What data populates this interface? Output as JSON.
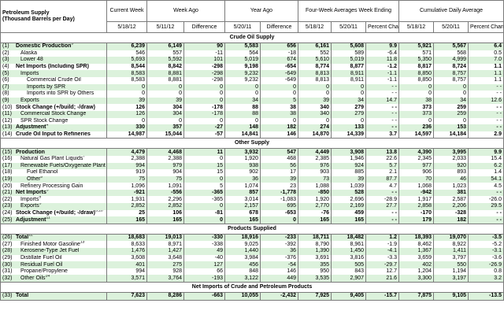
{
  "header": {
    "title_lines": [
      "Petroleum Supply",
      "(Thousand Barrels per Day)"
    ],
    "groups": [
      {
        "label": "Current Week",
        "subs": [
          "5/18/12"
        ]
      },
      {
        "label": "Week Ago",
        "subs": [
          "5/11/12",
          "Difference"
        ]
      },
      {
        "label": "Year Ago",
        "subs": [
          "5/20/11",
          "Difference"
        ]
      },
      {
        "label": "Four-Week Averages Week Ending",
        "subs": [
          "5/18/12",
          "5/20/11",
          "Percent Change"
        ]
      },
      {
        "label": "Cumulative Daily Average",
        "subs": [
          "5/18/12",
          "5/20/11",
          "Percent Change"
        ]
      }
    ]
  },
  "sections": [
    {
      "title": "Crude Oil Supply",
      "rows": [
        {
          "num": "(1)",
          "label": "Domestic Production",
          "note": "5",
          "values": [
            "6,239",
            "6,149",
            "90",
            "5,583",
            "656",
            "6,161",
            "5,608",
            "9.9",
            "5,921",
            "5,567",
            "6.4"
          ]
        },
        {
          "num": "(2)",
          "label": "Alaska",
          "values": [
            "546",
            "557",
            "-11",
            "564",
            "-18",
            "552",
            "589",
            "-6.4",
            "571",
            "568",
            "0.5"
          ]
        },
        {
          "num": "(3)",
          "label": "Lower 48",
          "values": [
            "5,693",
            "5,592",
            "101",
            "5,019",
            "674",
            "5,610",
            "5,019",
            "11.8",
            "5,350",
            "4,999",
            "7.0"
          ]
        },
        {
          "num": "(4)",
          "label": "Net Imports (Including SPR)",
          "values": [
            "8,544",
            "8,842",
            "-298",
            "9,198",
            "-654",
            "8,774",
            "8,877",
            "-1.2",
            "8,817",
            "8,724",
            "1.1"
          ]
        },
        {
          "num": "(5)",
          "label": "Imports",
          "values": [
            "8,583",
            "8,881",
            "-298",
            "9,232",
            "-649",
            "8,813",
            "8,911",
            "-1.1",
            "8,850",
            "8,757",
            "1.1"
          ]
        },
        {
          "num": "(6)",
          "label": "Commercial Crude Oil",
          "values": [
            "8,583",
            "8,881",
            "-298",
            "9,232",
            "-649",
            "8,813",
            "8,911",
            "-1.1",
            "8,850",
            "8,757",
            "1.1"
          ]
        },
        {
          "num": "(7)",
          "label": "Imports by SPR",
          "values": [
            "0",
            "0",
            "0",
            "0",
            "0",
            "0",
            "0",
            "- -",
            "0",
            "0",
            "- -"
          ]
        },
        {
          "num": "(8)",
          "label": "Imports into SPR by Others",
          "values": [
            "0",
            "0",
            "0",
            "0",
            "0",
            "0",
            "0",
            "- -",
            "0",
            "0",
            "- -"
          ]
        },
        {
          "num": "(9)",
          "label": "Exports",
          "values": [
            "39",
            "39",
            "0",
            "34",
            "5",
            "39",
            "34",
            "14.7",
            "38",
            "34",
            "12.6"
          ]
        },
        {
          "num": "(10)",
          "label": "Stock Change (+/build; -/draw)",
          "values": [
            "126",
            "304",
            "-178",
            "88",
            "38",
            "340",
            "279",
            "- -",
            "373",
            "259",
            "- -"
          ]
        },
        {
          "num": "(11)",
          "label": "Commercial Stock Change",
          "values": [
            "126",
            "304",
            "-178",
            "88",
            "38",
            "340",
            "279",
            "- -",
            "373",
            "259",
            "- -"
          ]
        },
        {
          "num": "(12)",
          "label": "SPR Stock Change",
          "values": [
            "0",
            "0",
            "0",
            "0",
            "0",
            "0",
            "0",
            "- -",
            "0",
            "0",
            "- -"
          ]
        },
        {
          "num": "(13)",
          "label": "Adjustment",
          "note": "4",
          "values": [
            "330",
            "357",
            "-27",
            "148",
            "182",
            "274",
            "133",
            "- -",
            "236",
            "153",
            "- -"
          ]
        },
        {
          "num": "(14)",
          "label": "Crude Oil Input to Refineries",
          "values": [
            "14,987",
            "15,044",
            "-57",
            "14,841",
            "146",
            "14,870",
            "14,339",
            "3.7",
            "14,597",
            "14,184",
            "2.9"
          ]
        }
      ]
    },
    {
      "title": "Other Supply",
      "rows": [
        {
          "num": "(15)",
          "label": "Production",
          "values": [
            "4,479",
            "4,468",
            "11",
            "3,932",
            "547",
            "4,449",
            "3,908",
            "13.8",
            "4,390",
            "3,995",
            "9.9"
          ]
        },
        {
          "num": "(16)",
          "label": "Natural Gas Plant Liquids",
          "note": "7",
          "values": [
            "2,388",
            "2,388",
            "0",
            "1,920",
            "468",
            "2,385",
            "1,946",
            "22.6",
            "2,345",
            "2,033",
            "15.4"
          ]
        },
        {
          "num": "(17)",
          "label": "Renewable Fuels/Oxygenate Plant",
          "values": [
            "994",
            "979",
            "15",
            "938",
            "56",
            "976",
            "924",
            "5.7",
            "977",
            "920",
            "6.2"
          ]
        },
        {
          "num": "(18)",
          "label": "Fuel Ethanol",
          "values": [
            "919",
            "904",
            "15",
            "902",
            "17",
            "903",
            "885",
            "2.1",
            "906",
            "893",
            "1.4"
          ]
        },
        {
          "num": "(19)",
          "label": "Other",
          "note": "8",
          "values": [
            "75",
            "75",
            "0",
            "36",
            "39",
            "73",
            "39",
            "87.7",
            "70",
            "46",
            "54.1"
          ]
        },
        {
          "num": "(20)",
          "label": "Refinery Processing Gain",
          "values": [
            "1,096",
            "1,091",
            "5",
            "1,074",
            "23",
            "1,088",
            "1,039",
            "4.7",
            "1,068",
            "1,023",
            "4.5"
          ]
        },
        {
          "num": "(21)",
          "label": "Net Imports",
          "note": "9",
          "values": [
            "-921",
            "-556",
            "-365",
            "857",
            "-1,778",
            "-850",
            "528",
            "- -",
            "-942",
            "381",
            "- -"
          ]
        },
        {
          "num": "(22)",
          "label": "Imports",
          "note": "9",
          "values": [
            "1,931",
            "2,296",
            "-365",
            "3,014",
            "-1,083",
            "1,920",
            "2,696",
            "-28.9",
            "1,917",
            "2,587",
            "-26.0"
          ]
        },
        {
          "num": "(23)",
          "label": "Exports",
          "note": "9",
          "values": [
            "2,852",
            "2,852",
            "0",
            "2,157",
            "695",
            "2,770",
            "2,169",
            "27.7",
            "2,858",
            "2,206",
            "29.5"
          ]
        },
        {
          "num": "(24)",
          "label": "Stock Change (+/build; -/draw)",
          "note": "3,10",
          "values": [
            "25",
            "106",
            "-81",
            "678",
            "-653",
            "-76",
            "459",
            "- -",
            "-170",
            "-328",
            "- -"
          ]
        },
        {
          "num": "(25)",
          "label": "Adjustment",
          "note": "11",
          "values": [
            "165",
            "165",
            "0",
            "165",
            "0",
            "165",
            "165",
            "- -",
            "179",
            "182",
            "- -"
          ]
        }
      ]
    },
    {
      "title": "Products Supplied",
      "rows": [
        {
          "num": "(26)",
          "label": "Total",
          "note": "12",
          "values": [
            "18,683",
            "19,013",
            "-330",
            "18,916",
            "-233",
            "18,711",
            "18,482",
            "1.2",
            "18,393",
            "19,070",
            "-3.5"
          ]
        },
        {
          "num": "(27)",
          "label": "Finished Motor Gasoline",
          "note": "13",
          "values": [
            "8,633",
            "8,971",
            "-338",
            "9,025",
            "-392",
            "8,790",
            "8,961",
            "-1.9",
            "8,462",
            "8,922",
            "-5.2"
          ]
        },
        {
          "num": "(28)",
          "label": "Kerosene-Type Jet Fuel",
          "values": [
            "1,476",
            "1,427",
            "49",
            "1,440",
            "36",
            "1,390",
            "1,450",
            "-4.1",
            "1,367",
            "1,411",
            "-3.1"
          ]
        },
        {
          "num": "(29)",
          "label": "Distillate Fuel Oil",
          "values": [
            "3,608",
            "3,648",
            "-40",
            "3,984",
            "-376",
            "3,691",
            "3,816",
            "-3.3",
            "3,659",
            "3,797",
            "-3.6"
          ]
        },
        {
          "num": "(30)",
          "label": "Residual Fuel Oil",
          "values": [
            "401",
            "275",
            "127",
            "456",
            "-54",
            "355",
            "505",
            "-29.7",
            "402",
            "550",
            "-26.9"
          ]
        },
        {
          "num": "(31)",
          "label": "Propane/Propylene",
          "values": [
            "994",
            "928",
            "66",
            "848",
            "146",
            "950",
            "843",
            "12.7",
            "1,204",
            "1,194",
            "0.8"
          ]
        },
        {
          "num": "(32)",
          "label": "Other Oils",
          "note": "14",
          "values": [
            "3,571",
            "3,764",
            "-193",
            "3,122",
            "449",
            "3,535",
            "2,907",
            "21.6",
            "3,300",
            "3,197",
            "3.2"
          ]
        }
      ]
    },
    {
      "title": "Net Imports of Crude and Petroleum Products",
      "rows": [
        {
          "num": "(33)",
          "label": "Total",
          "values": [
            "7,623",
            "8,286",
            "-663",
            "10,055",
            "-2,432",
            "7,925",
            "9,405",
            "-15.7",
            "7,875",
            "9,105",
            "-13.5"
          ]
        }
      ]
    }
  ]
}
